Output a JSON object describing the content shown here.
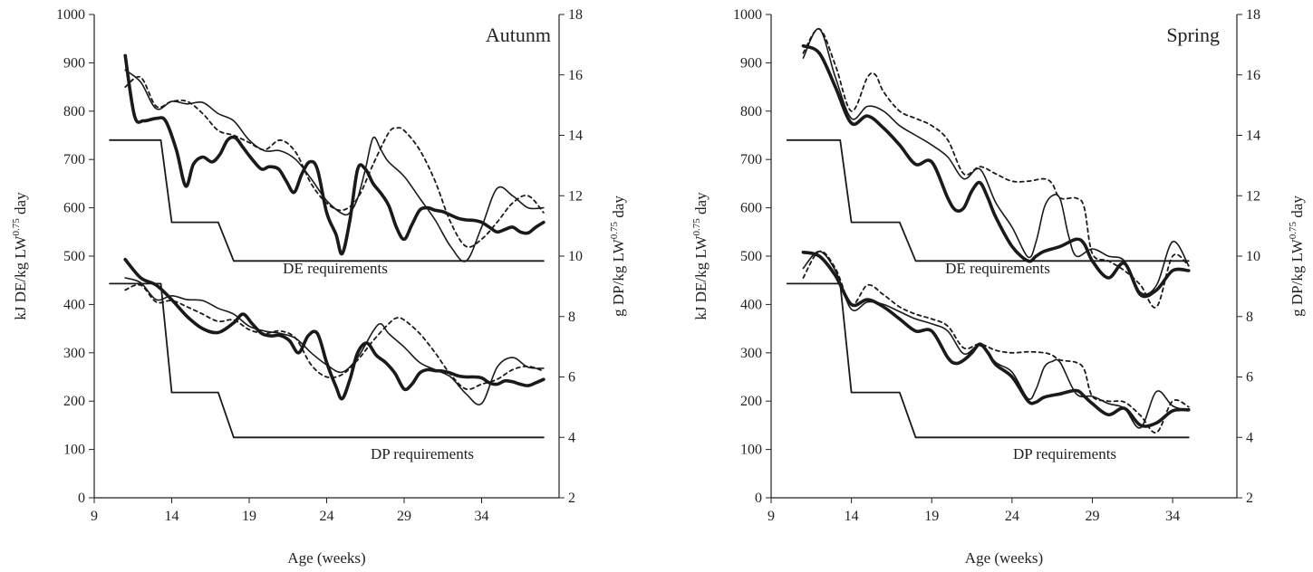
{
  "chart_data": [
    {
      "type": "line",
      "title": "Autunm",
      "xlabel": "Age (weeks)",
      "ylabel": "kJ DE/kg LW^0.75 day",
      "y2label": "g DP/kg LW^0.75 day",
      "xlim": [
        9,
        39
      ],
      "ylim": [
        0,
        1000
      ],
      "y2lim": [
        2,
        18
      ],
      "xticks": [
        "9",
        "14",
        "19",
        "24",
        "29",
        "34"
      ],
      "yticks": [
        "0",
        "100",
        "200",
        "300",
        "400",
        "500",
        "600",
        "700",
        "800",
        "900",
        "1000"
      ],
      "y2ticks": [
        "2",
        "4",
        "6",
        "8",
        "10",
        "12",
        "14",
        "16",
        "18"
      ],
      "annotations": [
        "DE requirements",
        "DP requirements"
      ],
      "series": [
        {
          "group": "DE",
          "style": "requirement",
          "x": [
            10,
            13.3,
            14,
            17,
            18,
            38
          ],
          "y": [
            740,
            740,
            570,
            570,
            490,
            490
          ]
        },
        {
          "group": "DE",
          "style": "thick",
          "x": [
            11,
            11.6,
            12.2,
            13,
            13.6,
            14.3,
            14.9,
            15.4,
            16,
            16.6,
            17.1,
            17.6,
            18.1,
            18.6,
            19.2,
            19.8,
            20.3,
            20.9,
            21.4,
            21.9,
            22.4,
            22.9,
            23.4,
            24,
            24.6,
            25,
            25.5,
            26,
            26.5,
            27,
            27.5,
            28,
            28.5,
            29,
            29.5,
            30,
            30.5,
            31,
            31.5,
            32,
            32.5,
            33,
            33.5,
            34,
            34.5,
            35,
            35.5,
            36,
            36.5,
            37,
            37.5,
            38
          ],
          "y": [
            915,
            790,
            780,
            785,
            780,
            720,
            645,
            690,
            705,
            695,
            710,
            740,
            745,
            725,
            700,
            680,
            685,
            680,
            655,
            632,
            670,
            695,
            680,
            590,
            545,
            505,
            575,
            680,
            680,
            650,
            630,
            605,
            560,
            535,
            565,
            595,
            600,
            595,
            592,
            585,
            578,
            575,
            574,
            570,
            560,
            550,
            555,
            560,
            550,
            548,
            560,
            570
          ]
        },
        {
          "group": "DE",
          "style": "thin",
          "x": [
            11,
            12,
            13,
            14,
            15,
            16,
            17,
            18,
            19,
            20,
            21,
            22,
            23,
            24,
            25,
            25.5,
            26,
            26.5,
            27,
            27.5,
            28,
            29,
            30,
            31,
            32,
            33,
            34,
            35,
            36,
            37,
            38
          ],
          "y": [
            885,
            860,
            805,
            820,
            815,
            818,
            795,
            780,
            740,
            718,
            718,
            700,
            660,
            615,
            588,
            590,
            620,
            680,
            745,
            720,
            695,
            665,
            620,
            575,
            520,
            490,
            560,
            640,
            625,
            600,
            600
          ]
        },
        {
          "group": "DE",
          "style": "dashed",
          "x": [
            11,
            12,
            13,
            14,
            15,
            16,
            17,
            18,
            19,
            20,
            21,
            22,
            23,
            24,
            25,
            26,
            27,
            28,
            28.5,
            29,
            30,
            31,
            32,
            33,
            34,
            35,
            36,
            37,
            38
          ],
          "y": [
            850,
            870,
            810,
            820,
            820,
            795,
            760,
            750,
            735,
            720,
            740,
            715,
            650,
            610,
            595,
            620,
            690,
            755,
            765,
            760,
            720,
            655,
            570,
            520,
            535,
            570,
            610,
            625,
            590
          ]
        },
        {
          "group": "DP",
          "style": "requirement",
          "x": [
            10,
            13.3,
            14,
            17,
            18,
            38
          ],
          "y": [
            443,
            443,
            218,
            218,
            125,
            125
          ]
        },
        {
          "group": "DP",
          "style": "thick",
          "x": [
            11,
            12,
            13,
            14,
            15,
            16,
            17,
            18,
            18.6,
            19.2,
            19.8,
            20.4,
            21,
            21.6,
            22.2,
            22.8,
            23.4,
            24,
            24.6,
            25,
            25.5,
            26,
            26.6,
            27.2,
            27.8,
            28.4,
            29,
            29.5,
            30,
            30.5,
            31,
            31.5,
            32,
            32.5,
            33,
            33.5,
            34,
            34.5,
            35,
            35.5,
            36,
            36.5,
            37,
            37.5,
            38
          ],
          "y": [
            493,
            455,
            440,
            410,
            375,
            350,
            342,
            362,
            380,
            360,
            340,
            335,
            336,
            325,
            300,
            335,
            340,
            280,
            230,
            205,
            245,
            300,
            320,
            295,
            280,
            258,
            225,
            235,
            258,
            265,
            263,
            262,
            258,
            252,
            250,
            250,
            248,
            238,
            235,
            242,
            240,
            235,
            232,
            238,
            245
          ]
        },
        {
          "group": "DP",
          "style": "thin",
          "x": [
            11,
            12,
            13,
            14,
            15,
            16,
            17,
            18,
            19,
            20,
            21,
            22,
            23,
            24,
            25,
            26,
            27,
            27.5,
            28,
            29,
            30,
            31,
            32,
            33,
            34,
            35,
            36,
            37,
            38
          ],
          "y": [
            455,
            445,
            410,
            418,
            410,
            408,
            392,
            380,
            355,
            345,
            340,
            330,
            300,
            275,
            260,
            290,
            345,
            360,
            340,
            312,
            280,
            265,
            250,
            215,
            195,
            270,
            290,
            270,
            268
          ]
        },
        {
          "group": "DP",
          "style": "dashed",
          "x": [
            11,
            12,
            13,
            14,
            15,
            16,
            17,
            18,
            19,
            20,
            21,
            22,
            23,
            24,
            25,
            26,
            27,
            28,
            28.5,
            29,
            30,
            31,
            32,
            33,
            34,
            35,
            36,
            37,
            38
          ],
          "y": [
            430,
            440,
            405,
            408,
            395,
            380,
            365,
            368,
            348,
            340,
            345,
            330,
            275,
            250,
            255,
            285,
            325,
            360,
            372,
            368,
            340,
            300,
            255,
            225,
            235,
            245,
            265,
            272,
            262
          ]
        }
      ]
    },
    {
      "type": "line",
      "title": "Spring",
      "xlabel": "Age (weeks)",
      "ylabel": "kJ DE/kg LW^0.75 day",
      "y2label": "g DP/kg LW^0.75 day",
      "xlim": [
        9,
        38
      ],
      "ylim": [
        0,
        1000
      ],
      "y2lim": [
        2,
        18
      ],
      "xticks": [
        "9",
        "14",
        "19",
        "24",
        "29",
        "34"
      ],
      "yticks": [
        "0",
        "100",
        "200",
        "300",
        "400",
        "500",
        "600",
        "700",
        "800",
        "900",
        "1000"
      ],
      "y2ticks": [
        "2",
        "4",
        "6",
        "8",
        "10",
        "12",
        "14",
        "16",
        "18"
      ],
      "annotations": [
        "DE requirements",
        "DP requirements"
      ],
      "series": [
        {
          "group": "DE",
          "style": "requirement",
          "x": [
            10,
            13.3,
            14,
            17,
            18,
            35
          ],
          "y": [
            740,
            740,
            570,
            570,
            490,
            490
          ]
        },
        {
          "group": "DE",
          "style": "thick",
          "x": [
            11,
            12,
            13,
            14,
            15,
            16,
            17,
            18,
            19,
            20,
            20.5,
            21,
            21.5,
            22,
            22.5,
            23,
            24,
            25,
            25.5,
            26,
            27,
            28,
            28.5,
            29,
            30,
            31,
            32,
            33,
            34,
            35
          ],
          "y": [
            935,
            920,
            850,
            775,
            790,
            765,
            730,
            690,
            695,
            620,
            595,
            600,
            635,
            652,
            620,
            580,
            520,
            490,
            500,
            510,
            520,
            535,
            525,
            490,
            455,
            485,
            420,
            430,
            470,
            470
          ]
        },
        {
          "group": "DE",
          "style": "thin",
          "x": [
            11,
            12,
            13,
            14,
            15,
            16,
            17,
            18,
            19,
            20,
            21,
            22,
            23,
            24,
            25,
            25.5,
            26,
            26.5,
            27,
            27.5,
            28,
            29,
            30,
            31,
            32,
            33,
            34,
            35
          ],
          "y": [
            910,
            970,
            870,
            785,
            810,
            800,
            770,
            750,
            730,
            705,
            660,
            680,
            610,
            560,
            498,
            530,
            600,
            625,
            618,
            545,
            500,
            515,
            500,
            490,
            425,
            440,
            530,
            480
          ]
        },
        {
          "group": "DE",
          "style": "dashed",
          "x": [
            11,
            12,
            13,
            14,
            15,
            15.5,
            16,
            17,
            18,
            19,
            20,
            21,
            22,
            23,
            24,
            25,
            26,
            26.5,
            27,
            28,
            28.5,
            29,
            30,
            31,
            32,
            33,
            34,
            35
          ],
          "y": [
            920,
            970,
            895,
            800,
            870,
            875,
            840,
            800,
            785,
            770,
            740,
            670,
            685,
            670,
            655,
            655,
            660,
            650,
            620,
            620,
            600,
            505,
            490,
            470,
            440,
            395,
            500,
            480
          ]
        },
        {
          "group": "DP",
          "style": "requirement",
          "x": [
            10,
            13.3,
            14,
            17,
            18,
            35
          ],
          "y": [
            443,
            443,
            218,
            218,
            125,
            125
          ]
        },
        {
          "group": "DP",
          "style": "thick",
          "x": [
            11,
            12,
            13,
            14,
            15,
            16,
            17,
            18,
            19,
            20,
            20.5,
            21,
            21.5,
            22,
            22.5,
            23,
            24,
            25,
            25.5,
            26,
            27,
            28,
            28.5,
            29,
            30,
            31,
            32,
            33,
            34,
            35
          ],
          "y": [
            508,
            500,
            460,
            400,
            410,
            395,
            370,
            345,
            345,
            290,
            278,
            285,
            300,
            318,
            300,
            275,
            250,
            200,
            198,
            208,
            215,
            222,
            210,
            195,
            172,
            185,
            150,
            155,
            180,
            182
          ]
        },
        {
          "group": "DP",
          "style": "thin",
          "x": [
            11,
            12,
            13,
            14,
            15,
            16,
            17,
            18,
            19,
            20,
            21,
            22,
            23,
            24,
            25,
            25.5,
            26,
            26.5,
            27,
            28,
            29,
            30,
            31,
            32,
            33,
            34,
            35
          ],
          "y": [
            475,
            510,
            470,
            390,
            405,
            400,
            385,
            370,
            360,
            345,
            298,
            315,
            280,
            260,
            205,
            225,
            270,
            282,
            280,
            215,
            210,
            195,
            185,
            145,
            220,
            190,
            180
          ]
        },
        {
          "group": "DP",
          "style": "dashed",
          "x": [
            11,
            12,
            13,
            14,
            15,
            16,
            17,
            18,
            19,
            20,
            21,
            22,
            23,
            24,
            25,
            26,
            26.5,
            27,
            28,
            28.5,
            29,
            30,
            31,
            32,
            33,
            34,
            35
          ],
          "y": [
            455,
            510,
            475,
            400,
            440,
            420,
            395,
            380,
            370,
            355,
            310,
            318,
            305,
            300,
            302,
            300,
            295,
            285,
            280,
            265,
            210,
            200,
            198,
            170,
            135,
            200,
            188
          ]
        }
      ]
    }
  ]
}
